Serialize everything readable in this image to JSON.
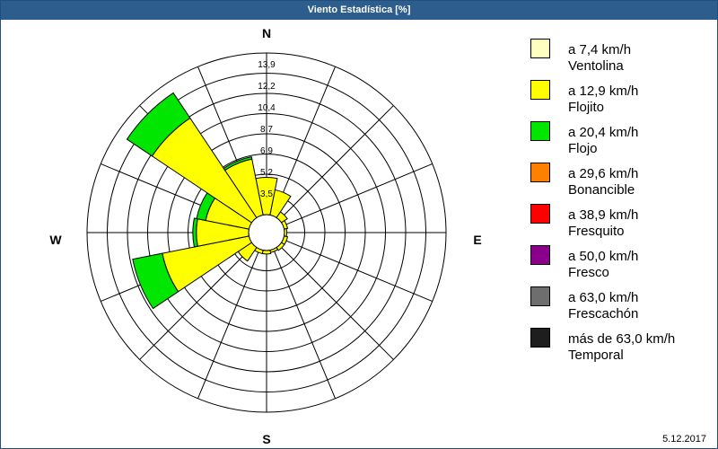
{
  "window": {
    "title": "Viento Estadística [%]"
  },
  "footer": {
    "date": "5.12.2017"
  },
  "compass": {
    "n": "N",
    "e": "E",
    "s": "S",
    "w": "W"
  },
  "chart_data": {
    "type": "windrose",
    "title": "Viento Estadística [%]",
    "directions": [
      "N",
      "NNE",
      "NE",
      "ENE",
      "E",
      "ESE",
      "SE",
      "SSE",
      "S",
      "SSW",
      "SW",
      "WSW",
      "W",
      "WNW",
      "NW",
      "NNW"
    ],
    "ring_labels": [
      "13,9",
      "12,2",
      "10,4",
      "8,7",
      "6,9",
      "5,2",
      "3,5"
    ],
    "rmax": 13.9,
    "series": [
      {
        "name": "a 7,4 km/h Ventolina",
        "color": "#ffffc0",
        "values": [
          0,
          0,
          0,
          0,
          0,
          0,
          0,
          0,
          0,
          0,
          0,
          0,
          0,
          0,
          0,
          0
        ]
      },
      {
        "name": "a 12,9 km/h Flojito",
        "color": "#ffff00",
        "values": [
          3.2,
          2.2,
          0.6,
          0.3,
          0.2,
          0.3,
          0.3,
          0.2,
          0.3,
          0.3,
          1.4,
          7.6,
          4.5,
          3.8,
          10.3,
          4.9
        ]
      },
      {
        "name": "a 20,4 km/h Flojo",
        "color": "#00e600",
        "values": [
          0,
          0,
          0,
          0,
          0,
          0,
          0,
          0,
          0,
          0,
          0,
          2.6,
          0.3,
          0.8,
          2.6,
          0.2
        ]
      },
      {
        "name": "a 29,6 km/h Bonancible",
        "color": "#ff8000",
        "values": [
          0,
          0,
          0,
          0,
          0,
          0,
          0,
          0,
          0,
          0,
          0,
          0,
          0,
          0,
          0,
          0
        ]
      },
      {
        "name": "a 38,9 km/h Fresquito",
        "color": "#ff0000",
        "values": [
          0,
          0,
          0,
          0,
          0,
          0,
          0,
          0,
          0,
          0,
          0,
          0,
          0,
          0,
          0,
          0
        ]
      },
      {
        "name": "a 50,0 km/h Fresco",
        "color": "#8b008b",
        "values": [
          0,
          0,
          0,
          0,
          0,
          0,
          0,
          0,
          0,
          0,
          0,
          0,
          0,
          0,
          0,
          0
        ]
      },
      {
        "name": "a 63,0 km/h Frescachón",
        "color": "#6e6e6e",
        "values": [
          0,
          0,
          0,
          0,
          0,
          0,
          0,
          0,
          0,
          0,
          0,
          0,
          0,
          0,
          0,
          0
        ]
      },
      {
        "name": "más de 63,0 km/h Temporal",
        "color": "#1e1e1e",
        "values": [
          0,
          0,
          0,
          0,
          0,
          0,
          0,
          0,
          0,
          0,
          0,
          0,
          0,
          0,
          0,
          0
        ]
      }
    ],
    "legend": [
      {
        "line1": "a 7,4 km/h",
        "line2": "Ventolina",
        "color": "#ffffc0"
      },
      {
        "line1": "a 12,9 km/h",
        "line2": "Flojito",
        "color": "#ffff00"
      },
      {
        "line1": "a 20,4 km/h",
        "line2": "Flojo",
        "color": "#00e600"
      },
      {
        "line1": "a 29,6 km/h",
        "line2": "Bonancible",
        "color": "#ff8000"
      },
      {
        "line1": "a 38,9 km/h",
        "line2": "Fresquito",
        "color": "#ff0000"
      },
      {
        "line1": "a 50,0 km/h",
        "line2": "Fresco",
        "color": "#8b008b"
      },
      {
        "line1": "a 63,0 km/h",
        "line2": "Frescachón",
        "color": "#6e6e6e"
      },
      {
        "line1": "más de 63,0 km/h",
        "line2": "Temporal",
        "color": "#1e1e1e"
      }
    ],
    "legend_placement": "right",
    "grid": true
  }
}
